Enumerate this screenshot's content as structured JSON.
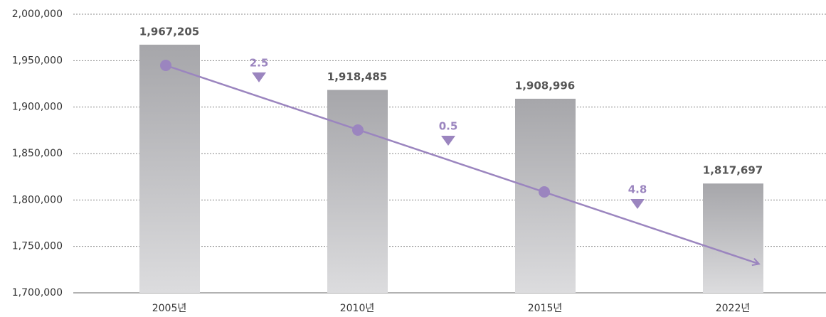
{
  "chart_data": {
    "type": "bar",
    "categories": [
      "2005년",
      "2010년",
      "2015년",
      "2022년"
    ],
    "values": [
      1967205,
      1918485,
      1908996,
      1817697
    ],
    "value_labels": [
      "1,967,205",
      "1,918,485",
      "1,908,996",
      "1,817,697"
    ],
    "ylim": [
      1700000,
      2000000
    ],
    "yticks": [
      {
        "value": 1700000,
        "label": "1,700,000"
      },
      {
        "value": 1750000,
        "label": "1,750,000"
      },
      {
        "value": 1800000,
        "label": "1,800,000"
      },
      {
        "value": 1850000,
        "label": "1,850,000"
      },
      {
        "value": 1900000,
        "label": "1,900,000"
      },
      {
        "value": 1950000,
        "label": "1,950,000"
      },
      {
        "value": 2000000,
        "label": "2,000,000"
      }
    ],
    "grid": true,
    "annotations": [
      "2.5",
      "0.5",
      "4.8"
    ],
    "annotation_color": "#9b85bf"
  }
}
